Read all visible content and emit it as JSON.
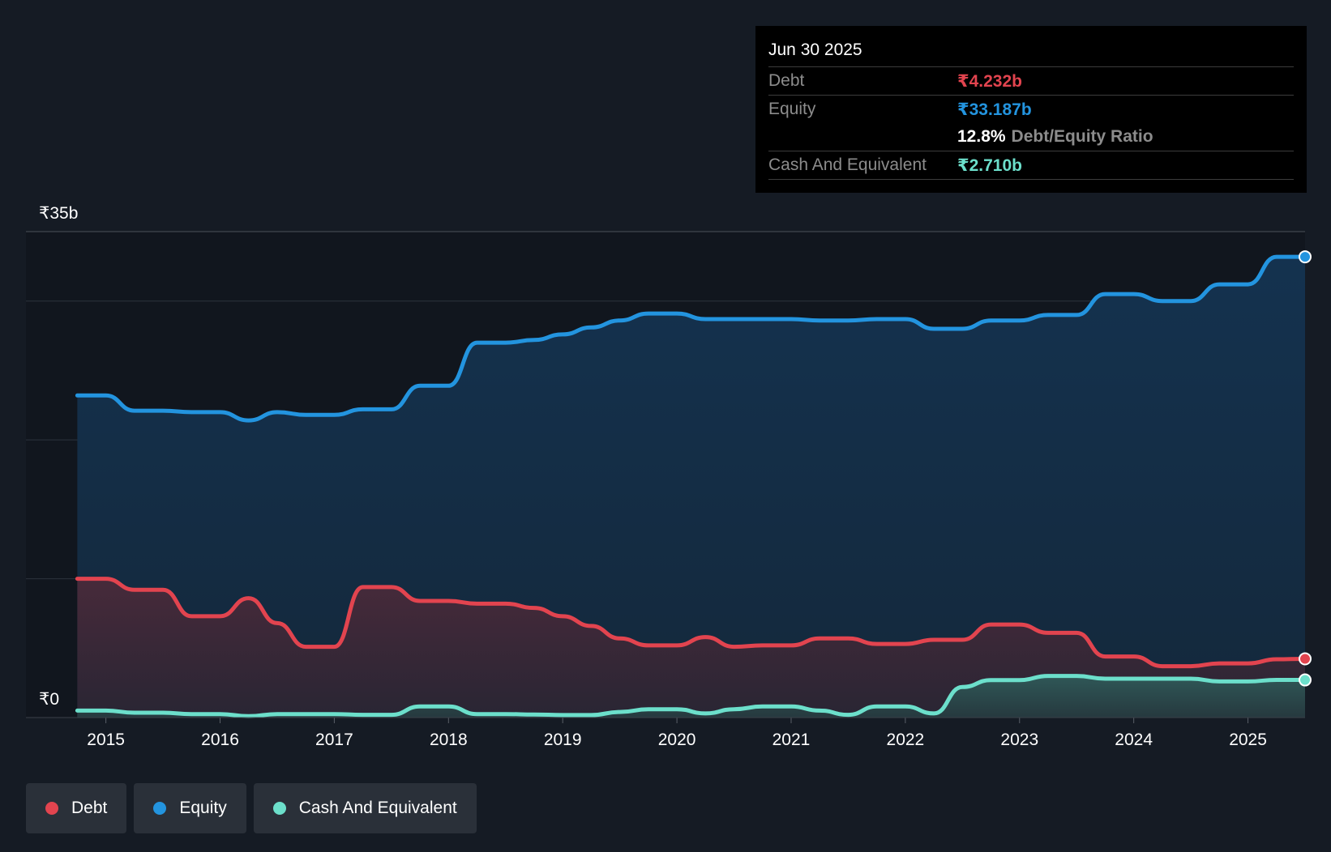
{
  "chart_data": {
    "type": "area",
    "currency": "₹",
    "y_labels": {
      "top": "₹35b",
      "bottom": "₹0"
    },
    "ylim": [
      0,
      35
    ],
    "gridlines": [
      10,
      20,
      30,
      35
    ],
    "x_ticks": [
      "2015",
      "2016",
      "2017",
      "2018",
      "2019",
      "2020",
      "2021",
      "2022",
      "2023",
      "2024",
      "2025"
    ],
    "x_tick_values": [
      2015,
      2016,
      2017,
      2018,
      2019,
      2020,
      2021,
      2022,
      2023,
      2024,
      2025
    ],
    "xlim": [
      2014.3,
      2025.5
    ],
    "series": [
      {
        "name": "Debt",
        "color": "#e2444f",
        "x": [
          2014.75,
          2015.0,
          2015.25,
          2015.5,
          2015.75,
          2016.0,
          2016.25,
          2016.5,
          2016.75,
          2017.0,
          2017.25,
          2017.5,
          2017.75,
          2018.0,
          2018.25,
          2018.5,
          2018.75,
          2019.0,
          2019.25,
          2019.5,
          2019.75,
          2020.0,
          2020.25,
          2020.5,
          2020.75,
          2021.0,
          2021.25,
          2021.5,
          2021.75,
          2022.0,
          2022.25,
          2022.5,
          2022.75,
          2023.0,
          2023.25,
          2023.5,
          2023.75,
          2024.0,
          2024.25,
          2024.5,
          2024.75,
          2025.0,
          2025.25,
          2025.5
        ],
        "values": [
          10.0,
          10.0,
          9.2,
          9.2,
          7.3,
          7.3,
          8.6,
          6.8,
          5.1,
          5.1,
          9.4,
          9.4,
          8.4,
          8.4,
          8.2,
          8.2,
          7.9,
          7.3,
          6.6,
          5.7,
          5.2,
          5.2,
          5.8,
          5.1,
          5.2,
          5.2,
          5.7,
          5.7,
          5.3,
          5.3,
          5.6,
          5.6,
          6.7,
          6.7,
          6.1,
          6.1,
          4.4,
          4.4,
          3.7,
          3.7,
          3.9,
          3.9,
          4.2,
          4.232
        ]
      },
      {
        "name": "Equity",
        "color": "#2394df",
        "x": [
          2014.75,
          2015.0,
          2015.25,
          2015.5,
          2015.75,
          2016.0,
          2016.25,
          2016.5,
          2016.75,
          2017.0,
          2017.25,
          2017.5,
          2017.75,
          2018.0,
          2018.25,
          2018.5,
          2018.75,
          2019.0,
          2019.25,
          2019.5,
          2019.75,
          2020.0,
          2020.25,
          2020.5,
          2020.75,
          2021.0,
          2021.25,
          2021.5,
          2021.75,
          2022.0,
          2022.25,
          2022.5,
          2022.75,
          2023.0,
          2023.25,
          2023.5,
          2023.75,
          2024.0,
          2024.25,
          2024.5,
          2024.75,
          2025.0,
          2025.25,
          2025.5
        ],
        "values": [
          23.2,
          23.2,
          22.1,
          22.1,
          22.0,
          22.0,
          21.4,
          22.0,
          21.8,
          21.8,
          22.2,
          22.2,
          23.9,
          23.9,
          27.0,
          27.0,
          27.2,
          27.6,
          28.1,
          28.6,
          29.1,
          29.1,
          28.7,
          28.7,
          28.7,
          28.7,
          28.6,
          28.6,
          28.7,
          28.7,
          28.0,
          28.0,
          28.6,
          28.6,
          29.0,
          29.0,
          30.5,
          30.5,
          30.0,
          30.0,
          31.2,
          31.2,
          33.187,
          33.187
        ]
      },
      {
        "name": "Cash And Equivalent",
        "color": "#6cdfcb",
        "x": [
          2014.75,
          2015.0,
          2015.25,
          2015.5,
          2015.75,
          2016.0,
          2016.25,
          2016.5,
          2016.75,
          2017.0,
          2017.25,
          2017.5,
          2017.75,
          2018.0,
          2018.25,
          2018.5,
          2018.75,
          2019.0,
          2019.25,
          2019.5,
          2019.75,
          2020.0,
          2020.25,
          2020.5,
          2020.75,
          2021.0,
          2021.25,
          2021.5,
          2021.75,
          2022.0,
          2022.25,
          2022.5,
          2022.75,
          2023.0,
          2023.25,
          2023.5,
          2023.75,
          2024.0,
          2024.25,
          2024.5,
          2024.75,
          2025.0,
          2025.25,
          2025.5
        ],
        "values": [
          0.5,
          0.5,
          0.35,
          0.35,
          0.25,
          0.25,
          0.1,
          0.25,
          0.25,
          0.25,
          0.2,
          0.2,
          0.8,
          0.8,
          0.25,
          0.25,
          0.22,
          0.18,
          0.18,
          0.4,
          0.6,
          0.6,
          0.3,
          0.6,
          0.8,
          0.8,
          0.5,
          0.2,
          0.8,
          0.8,
          0.3,
          2.2,
          2.7,
          2.7,
          3.0,
          3.0,
          2.8,
          2.8,
          2.8,
          2.8,
          2.6,
          2.6,
          2.71,
          2.71
        ]
      }
    ]
  },
  "tooltip": {
    "date": "Jun 30 2025",
    "debt_label": "Debt",
    "debt_value": "₹4.232b",
    "equity_label": "Equity",
    "equity_value": "₹33.187b",
    "ratio_value": "12.8%",
    "ratio_label": "Debt/Equity Ratio",
    "cash_label": "Cash And Equivalent",
    "cash_value": "₹2.710b"
  },
  "legend": [
    {
      "label": "Debt",
      "color": "#e2444f"
    },
    {
      "label": "Equity",
      "color": "#2394df"
    },
    {
      "label": "Cash And Equivalent",
      "color": "#6cdfcb"
    }
  ],
  "colors": {
    "background": "#151b24",
    "plot_background": "#11161e",
    "debt": "#e2444f",
    "equity": "#2394df",
    "cash": "#6cdfcb"
  }
}
